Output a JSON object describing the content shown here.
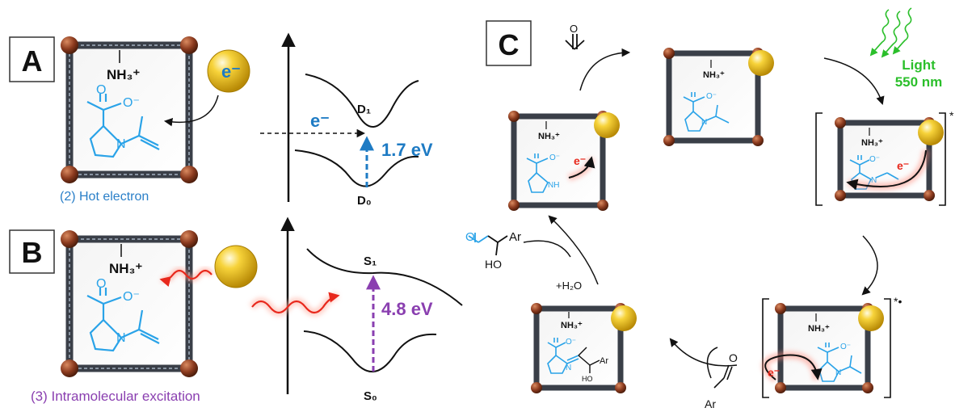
{
  "panels": {
    "a": {
      "letter": "A",
      "caption": "(2) Hot electron",
      "electron": "e⁻",
      "ammonium": "NH₃⁺",
      "carboxylate": "O⁻"
    },
    "b": {
      "letter": "B",
      "caption": "(3) Intramolecular excitation",
      "ammonium": "NH₃⁺",
      "carboxylate": "O⁻"
    },
    "c": {
      "letter": "C"
    }
  },
  "energy_a": {
    "electron": "e⁻",
    "upper": "D₁",
    "lower": "D₀",
    "gap": "1.7 eV"
  },
  "energy_b": {
    "upper": "S₁",
    "lower": "S₀",
    "gap": "4.8 eV"
  },
  "cycle": {
    "light_label_1": "Light",
    "light_label_2": "550 nm",
    "water": "+H₂O",
    "ammonium": "NH₃⁺",
    "carboxylate": "O⁻",
    "electron": "e⁻",
    "nh": "NH",
    "n": "N",
    "ar": "Ar",
    "ho": "HO",
    "o": "O",
    "excited_mark": "*",
    "radical_mark": "*•"
  },
  "colors": {
    "blue": "#2aa3e8",
    "energy_blue": "#1e7bc4",
    "purple": "#8a3fb0",
    "green": "#2bbf2b",
    "red": "#e8281c",
    "frame": "#3a3f48",
    "node": "#8b3a1e",
    "gold": "#f2c41a"
  }
}
